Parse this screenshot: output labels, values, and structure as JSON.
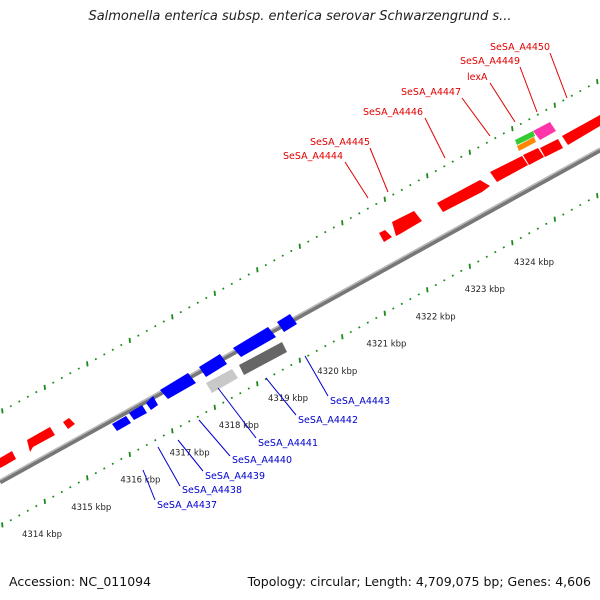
{
  "header": {
    "title": "Salmonella enterica subsp. enterica serovar Schwarzengrund s..."
  },
  "footer": {
    "accession": "Accession: NC_011094",
    "summary": "Topology: circular; Length: 4,709,075 bp; Genes: 4,606"
  },
  "colors": {
    "backbone": "#888888",
    "tick_green": "#1a8a1a",
    "forward_gene": "#ff0000",
    "reverse_gene": "#0000ff",
    "label_forward": "#e00000",
    "label_reverse": "#0000cc",
    "grey_dark": "#666666",
    "grey_light": "#c8c8c8",
    "green_gene": "#33cc33",
    "pink_gene": "#ff33aa",
    "orange_gene": "#ff8800"
  },
  "map": {
    "kbp_labels": [
      "4314 kbp",
      "4315 kbp",
      "4316 kbp",
      "4317 kbp",
      "4318 kbp",
      "4319 kbp",
      "4320 kbp",
      "4321 kbp",
      "4322 kbp",
      "4323 kbp",
      "4324 kbp"
    ],
    "forward_gene_labels": [
      "SeSA_A4444",
      "SeSA_A4445",
      "SeSA_A4446",
      "SeSA_A4447",
      "lexA",
      "SeSA_A4449",
      "SeSA_A4450"
    ],
    "reverse_gene_labels": [
      "SeSA_A4437",
      "SeSA_A4438",
      "SeSA_A4439",
      "SeSA_A4440",
      "SeSA_A4441",
      "SeSA_A4442",
      "SeSA_A4443"
    ]
  }
}
